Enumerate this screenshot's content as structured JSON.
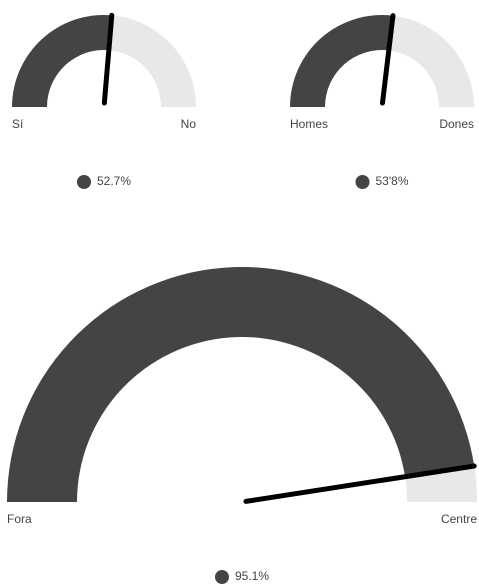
{
  "chart_data": [
    {
      "type": "gauge",
      "values": [
        52.7
      ],
      "value_labels": [
        "52.7%"
      ],
      "ylim": [
        0,
        100
      ],
      "min_label": "Sí",
      "max_label": "No",
      "color": "#444444",
      "track_color": "#e8e8e8",
      "needle_color": "#000000"
    },
    {
      "type": "gauge",
      "values": [
        53.8
      ],
      "value_labels": [
        "53'8%"
      ],
      "ylim": [
        0,
        100
      ],
      "min_label": "Homes",
      "max_label": "Dones",
      "color": "#444444",
      "track_color": "#e8e8e8",
      "needle_color": "#000000"
    },
    {
      "type": "gauge",
      "values": [
        95.1
      ],
      "value_labels": [
        "95.1%"
      ],
      "ylim": [
        0,
        100
      ],
      "min_label": "Fora",
      "max_label": "Centre",
      "color": "#444444",
      "track_color": "#e8e8e8",
      "needle_color": "#000000"
    }
  ]
}
